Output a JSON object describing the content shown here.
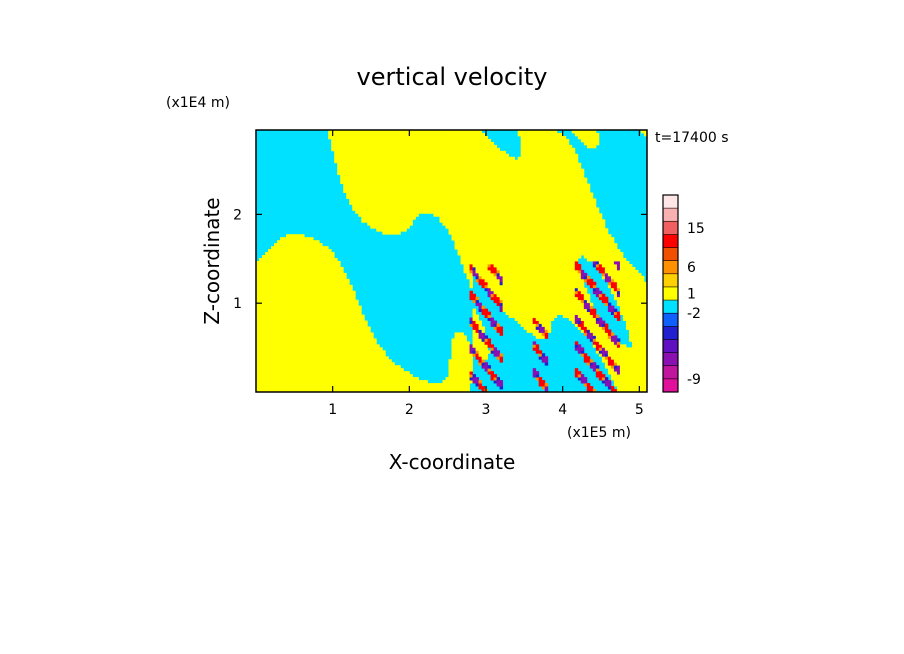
{
  "chart_data": {
    "type": "heatmap",
    "title": "vertical velocity",
    "xlabel": "X-coordinate",
    "ylabel": "Z-coordinate",
    "x_unit": "(x1E5 m)",
    "y_unit": "(x1E4 m)",
    "time_label": "t=17400 s",
    "xlim": [
      0,
      5.1
    ],
    "ylim": [
      0,
      2.95
    ],
    "x_ticks": [
      1,
      2,
      3,
      4,
      5
    ],
    "y_ticks": [
      1,
      2
    ],
    "colorbar": {
      "levels": [
        {
          "color": "#e0109a"
        },
        {
          "color": "#c0169e"
        },
        {
          "color": "#8a10b0"
        },
        {
          "color": "#6010c0"
        },
        {
          "color": "#2020d0"
        },
        {
          "color": "#1060ff"
        },
        {
          "color": "#00e0ff"
        },
        {
          "color": "#ffff00"
        },
        {
          "color": "#ffd000"
        },
        {
          "color": "#ff9000"
        },
        {
          "color": "#f05000"
        },
        {
          "color": "#ff0000"
        },
        {
          "color": "#f06060"
        },
        {
          "color": "#f8b0b0"
        },
        {
          "color": "#ffe6e6"
        }
      ],
      "tick_labels": [
        {
          "text": "-9",
          "level": 1
        },
        {
          "text": "-2",
          "level": 6
        },
        {
          "text": "1",
          "level": 7.5
        },
        {
          "text": "6",
          "level": 9.5
        },
        {
          "text": "15",
          "level": 12.5
        }
      ]
    },
    "dominant_colors": {
      "positive": "#ffff00",
      "negative": "#00e0ff"
    }
  }
}
